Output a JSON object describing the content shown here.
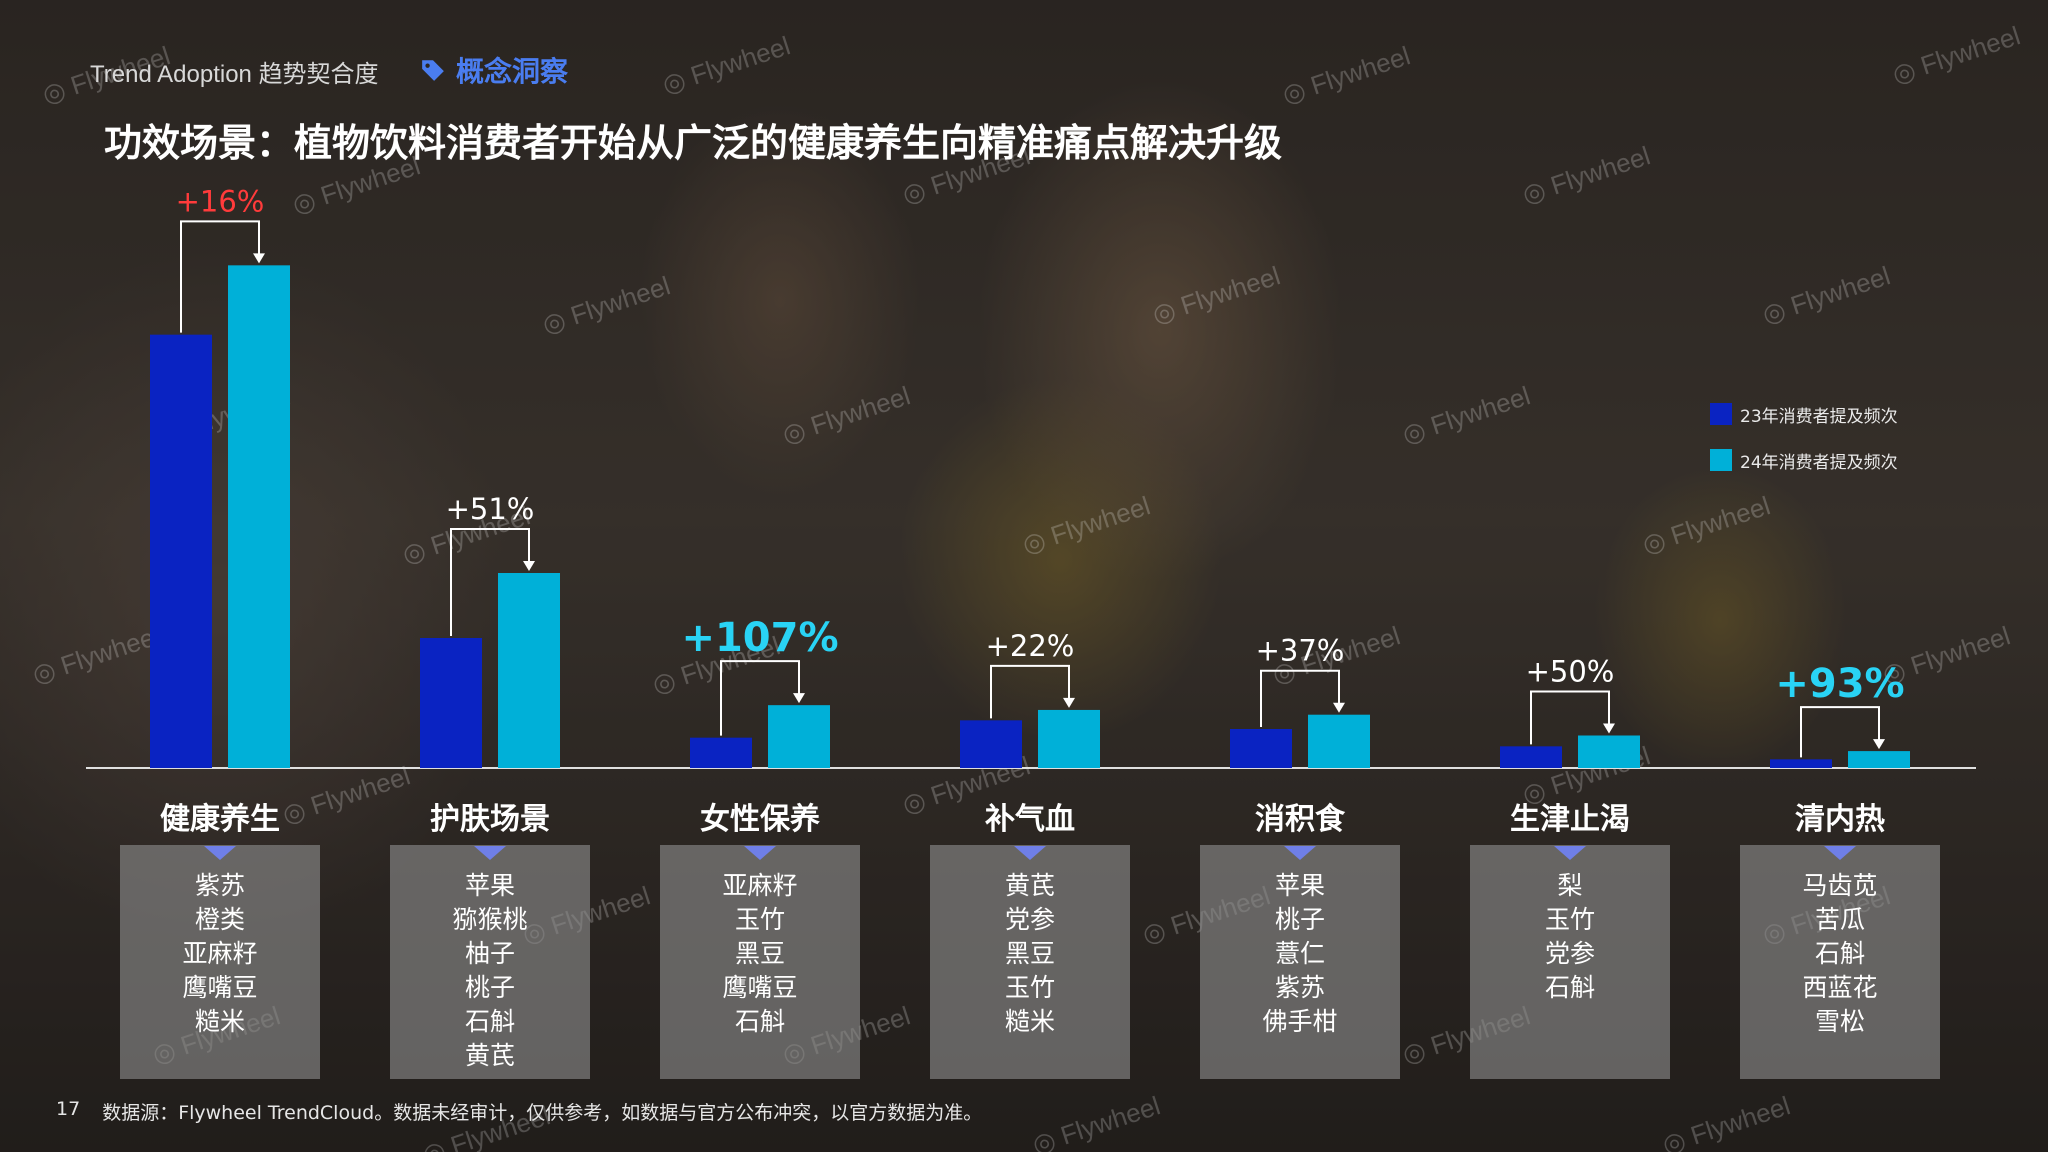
{
  "header": {
    "subtitle": "Trend Adoption 趋势契合度",
    "concept_label": "概念洞察",
    "title": "功效场景：植物饮料消费者开始从广泛的健康养生向精准痛点解决升级"
  },
  "watermark": "Flywheel",
  "colors": {
    "series_23": "#0a23c2",
    "series_24": "#00b0d8",
    "growth_highlight": "#29d3f5",
    "growth_first": "#ff3b3b"
  },
  "chart_data": {
    "type": "bar",
    "categories": [
      "健康养生",
      "护肤场景",
      "女性保养",
      "补气血",
      "消积食",
      "生津止渴",
      "清内热"
    ],
    "series": [
      {
        "name": "23年消费者提及频次",
        "values": [
          100,
          30,
          7,
          11,
          9,
          5,
          2
        ]
      },
      {
        "name": "24年消费者提及频次",
        "values": [
          116,
          45,
          14.5,
          13.4,
          12.3,
          7.5,
          3.9
        ]
      }
    ],
    "growth_labels": [
      "+16%",
      "+51%",
      "+107%",
      "+22%",
      "+37%",
      "+50%",
      "+93%"
    ],
    "highlighted": [
      false,
      false,
      true,
      false,
      false,
      false,
      true
    ],
    "ylim": [
      0,
      120
    ],
    "legend_position": "right"
  },
  "ingredients": [
    [
      "紫苏",
      "橙类",
      "亚麻籽",
      "鹰嘴豆",
      "糙米"
    ],
    [
      "苹果",
      "猕猴桃",
      "柚子",
      "桃子",
      "石斛",
      "黄芪"
    ],
    [
      "亚麻籽",
      "玉竹",
      "黑豆",
      "鹰嘴豆",
      "石斛"
    ],
    [
      "黄芪",
      "党参",
      "黑豆",
      "玉竹",
      "糙米"
    ],
    [
      "苹果",
      "桃子",
      "薏仁",
      "紫苏",
      "佛手柑"
    ],
    [
      "梨",
      "玉竹",
      "党参",
      "石斛"
    ],
    [
      "马齿苋",
      "苦瓜",
      "石斛",
      "西蓝花",
      "雪松"
    ]
  ],
  "footer": {
    "page": "17",
    "source": "数据源：Flywheel TrendCloud。数据未经审计，仅供参考，如数据与官方公布冲突，以官方数据为准。"
  }
}
